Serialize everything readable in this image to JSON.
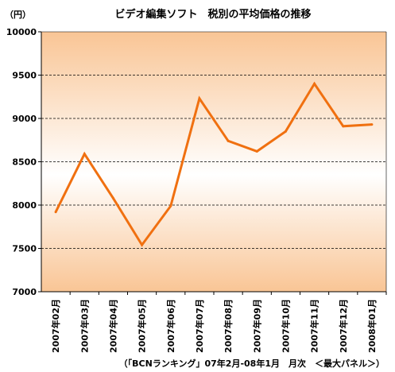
{
  "chart_data": {
    "type": "line",
    "title": "ビデオ編集ソフト　税別の平均価格の推移",
    "unit_label": "（円）",
    "source_note": "（「BCNランキング」07年2月-08年1月　月次　＜最大パネル＞）",
    "categories": [
      "2007年02月",
      "2007年03月",
      "2007年04月",
      "2007年05月",
      "2007年06月",
      "2007年07月",
      "2007年08月",
      "2007年09月",
      "2007年10月",
      "2007年11月",
      "2007年12月",
      "2008年01月"
    ],
    "series": [
      {
        "values": [
          7920,
          8590,
          8080,
          7540,
          7990,
          9230,
          8740,
          8620,
          8850,
          9400,
          8910,
          8930
        ]
      }
    ],
    "ylim": [
      7000,
      10000
    ],
    "yticks": [
      "7000",
      "7500",
      "8000",
      "8500",
      "9000",
      "9500",
      "10000"
    ],
    "grid": true,
    "colors": {
      "line": "#f07010",
      "band_outer": "#f9c595",
      "band_inner": "#ffffff"
    }
  }
}
